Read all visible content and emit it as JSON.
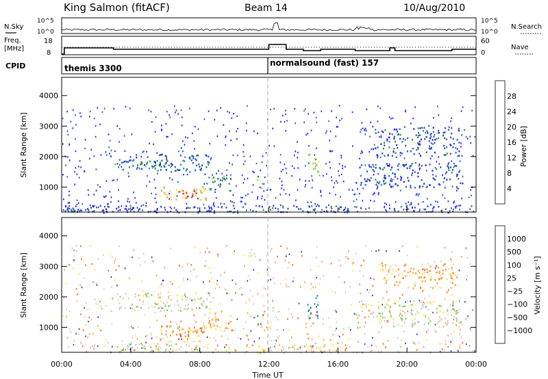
{
  "header": {
    "station": "King Salmon (fitACF)",
    "beam": "Beam 14",
    "date": "10/Aug/2010"
  },
  "strip_labels": {
    "nsky": "N.Sky",
    "nsky_top": "10^5",
    "nsky_bottom": "10^0",
    "freq_line1": "Freq.",
    "freq_line2": "[MHz]",
    "freq_top": "18",
    "freq_bottom": "8",
    "cpid": "CPID",
    "nsearch": "N.Search",
    "nsearch_top": "10^5",
    "nsearch_bottom": "10^0",
    "nave": "Nave",
    "nave_top": "60",
    "nave_bottom": "0"
  },
  "cpid_modes": [
    {
      "label": "themis 3300",
      "start_hour": 0
    },
    {
      "label": "normalsound (fast) 157",
      "start_hour": 12
    }
  ],
  "freq_trace": [
    [
      0,
      8.5
    ],
    [
      0.15,
      8.5
    ],
    [
      0.15,
      13
    ],
    [
      3,
      13
    ],
    [
      3,
      12
    ],
    [
      12,
      12
    ],
    [
      12,
      15.5
    ],
    [
      13,
      15.5
    ],
    [
      13,
      12
    ],
    [
      14,
      12
    ],
    [
      14,
      11
    ],
    [
      15,
      11
    ],
    [
      15,
      12
    ],
    [
      17,
      12
    ],
    [
      17,
      11
    ],
    [
      19,
      11
    ],
    [
      19,
      13
    ],
    [
      19.3,
      13
    ],
    [
      19.3,
      11
    ],
    [
      22.6,
      11
    ],
    [
      22.6,
      12
    ],
    [
      24,
      12
    ]
  ],
  "time_axis": {
    "label": "Time UT",
    "ticks": [
      "00:00",
      "04:00",
      "08:00",
      "12:00",
      "16:00",
      "20:00",
      "00:00"
    ],
    "range_hours": [
      0,
      24
    ]
  },
  "panels": [
    {
      "ylabel": "Slant Range [km]",
      "yticks": [
        "1000",
        "2000",
        "3000",
        "4000"
      ],
      "colorbar_label": "Power [dB]",
      "colorbar_ticks": [
        "4",
        "8",
        "12",
        "16",
        "20",
        "24",
        "28"
      ],
      "colors": [
        "#1a1aff",
        "#1f55b8",
        "#2b8b52",
        "#7fcd52",
        "#ffe14a",
        "#ffa030",
        "#ff5a1a",
        "#e60000"
      ]
    },
    {
      "ylabel": "Slant Range [km]",
      "yticks": [
        "1000",
        "2000",
        "3000",
        "4000"
      ],
      "colorbar_label": "Velocity [m s⁻¹]",
      "colorbar_ticks": [
        "1000",
        "500",
        "100",
        "25",
        "−25",
        "−100",
        "−500",
        "−1000"
      ],
      "colors": [
        "#2a3fb0",
        "#2f8c95",
        "#43a04d",
        "#7fcd52",
        "#c8c8c8",
        "#ffe14a",
        "#ff9a30",
        "#ff5a1a",
        "#e60000"
      ]
    }
  ],
  "chart_data": {
    "type": "heatmap",
    "x_unit": "hours UT",
    "xlim": [
      0,
      24
    ],
    "ylim": [
      180,
      4600
    ],
    "power_blobs": [
      {
        "t0": 2.8,
        "t1": 8.6,
        "r0": 1550,
        "r1": 2100,
        "level": 1
      },
      {
        "t0": 3.0,
        "t1": 6.5,
        "r0": 1650,
        "r1": 1900,
        "level": 2
      },
      {
        "t0": 5.6,
        "t1": 8.4,
        "r0": 600,
        "r1": 1050,
        "level": 4
      },
      {
        "t0": 6.5,
        "t1": 7.8,
        "r0": 650,
        "r1": 950,
        "level": 6
      },
      {
        "t0": 7.0,
        "t1": 7.6,
        "r0": 700,
        "r1": 850,
        "level": 7
      },
      {
        "t0": 8.5,
        "t1": 9.8,
        "r0": 900,
        "r1": 1600,
        "level": 2
      },
      {
        "t0": 11.3,
        "t1": 11.7,
        "r0": 1000,
        "r1": 1500,
        "level": 3
      },
      {
        "t0": 14.2,
        "t1": 14.9,
        "r0": 1200,
        "r1": 2100,
        "level": 3
      },
      {
        "t0": 14.5,
        "t1": 14.8,
        "r0": 1700,
        "r1": 1950,
        "level": 4
      },
      {
        "t0": 17.0,
        "t1": 23.2,
        "r0": 1000,
        "r1": 1800,
        "level": 1
      },
      {
        "t0": 18.0,
        "t1": 23.0,
        "r0": 2000,
        "r1": 3000,
        "level": 1
      },
      {
        "t0": 0.0,
        "t1": 24.0,
        "r0": 180,
        "r1": 420,
        "level": 1
      }
    ],
    "velocity_blobs": [
      {
        "t0": 2.8,
        "t1": 8.8,
        "r0": 1550,
        "r1": 2150,
        "level": 4
      },
      {
        "t0": 3.2,
        "t1": 9.5,
        "r0": 200,
        "r1": 500,
        "level": 4
      },
      {
        "t0": 5.6,
        "t1": 8.4,
        "r0": 550,
        "r1": 1100,
        "level": 6
      },
      {
        "t0": 6.8,
        "t1": 7.8,
        "r0": 650,
        "r1": 950,
        "level": 7
      },
      {
        "t0": 8.4,
        "t1": 9.9,
        "r0": 900,
        "r1": 1600,
        "level": 6
      },
      {
        "t0": 11.3,
        "t1": 11.7,
        "r0": 1000,
        "r1": 1500,
        "level": 2
      },
      {
        "t0": 14.2,
        "t1": 14.9,
        "r0": 1200,
        "r1": 2100,
        "level": 1
      },
      {
        "t0": 17.0,
        "t1": 23.2,
        "r0": 1000,
        "r1": 1900,
        "level": 4
      },
      {
        "t0": 18.5,
        "t1": 22.8,
        "r0": 2300,
        "r1": 3100,
        "level": 6
      },
      {
        "t0": 9.5,
        "t1": 16.5,
        "r0": 180,
        "r1": 450,
        "level": 5
      }
    ]
  }
}
